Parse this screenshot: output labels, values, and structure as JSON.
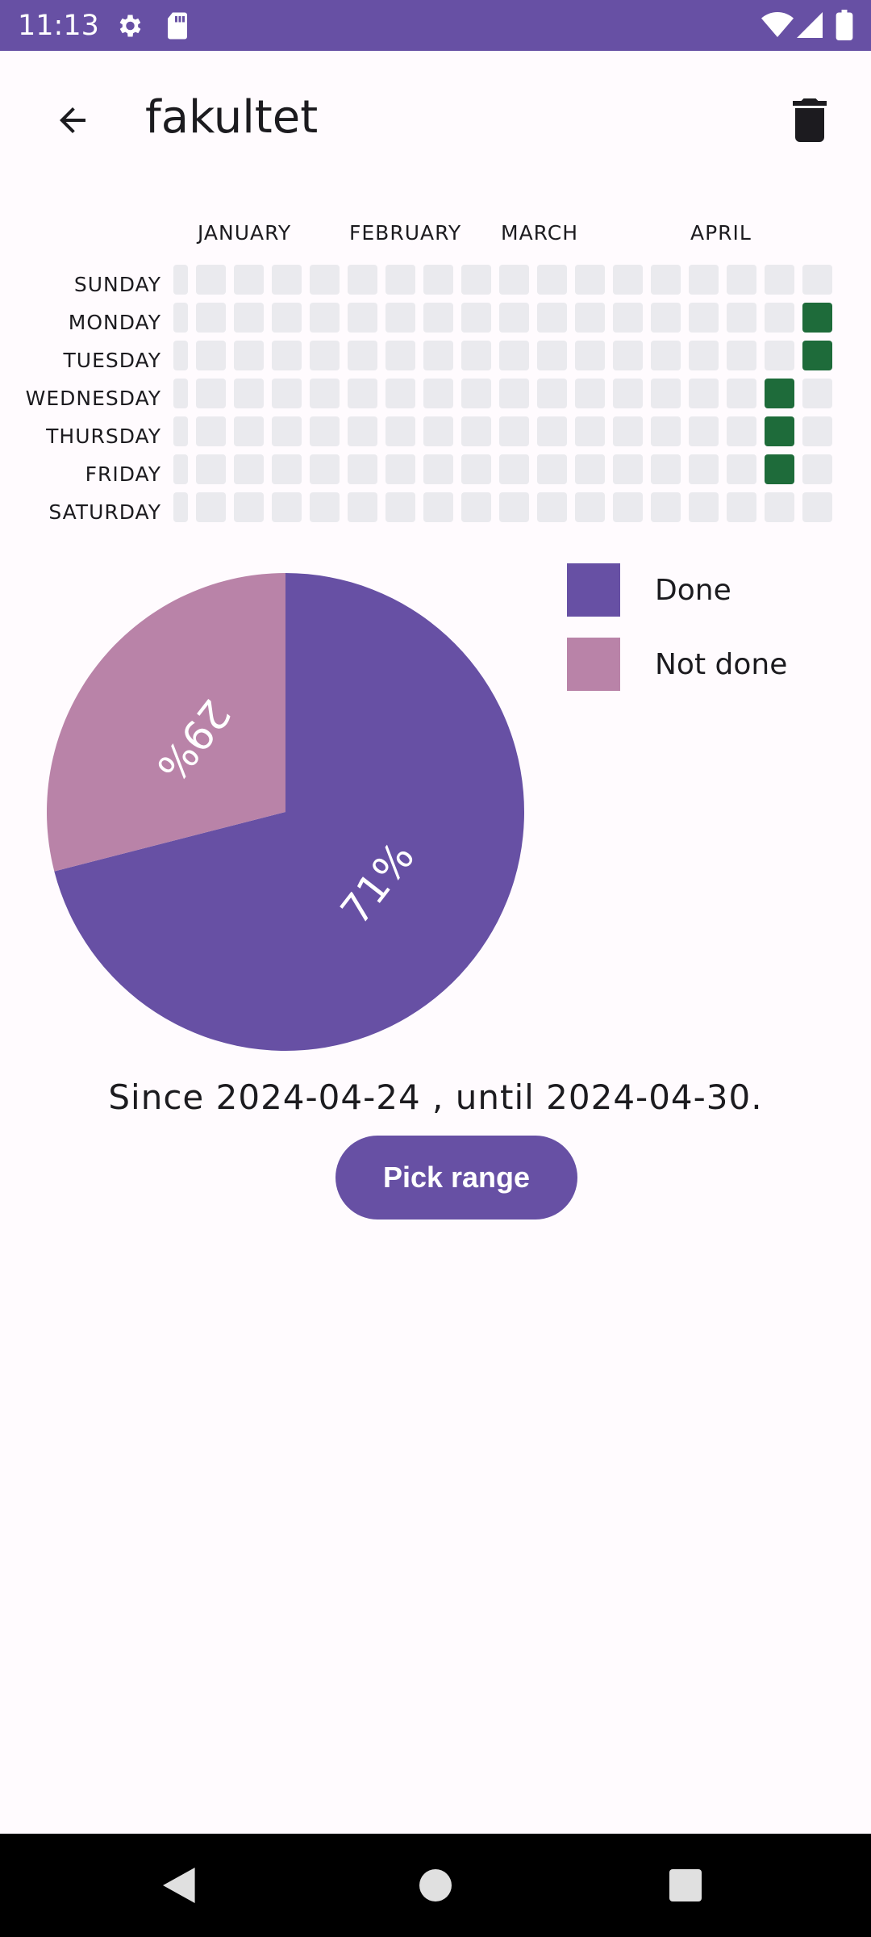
{
  "status_bar": {
    "time": "11:13",
    "icons": [
      "settings-icon",
      "sd-card-icon",
      "wifi-icon",
      "signal-icon",
      "battery-icon"
    ]
  },
  "app_bar": {
    "title": "fakultet",
    "back_icon": "arrow-left-icon",
    "delete_icon": "trash-icon"
  },
  "heatmap": {
    "months": [
      "JANUARY",
      "FEBRUARY",
      "MARCH",
      "APRIL"
    ],
    "days": [
      "SUNDAY",
      "MONDAY",
      "TUESDAY",
      "WEDNESDAY",
      "THURSDAY",
      "FRIDAY",
      "SATURDAY"
    ],
    "week_count": 18,
    "completed_days": [
      {
        "week": 17,
        "day": 1
      },
      {
        "week": 17,
        "day": 2
      },
      {
        "week": 16,
        "day": 3
      },
      {
        "week": 16,
        "day": 4
      },
      {
        "week": 16,
        "day": 5
      }
    ],
    "empty_color": "#eaeaee",
    "done_color": "#1e6b3a"
  },
  "chart_data": {
    "type": "pie",
    "slices": [
      {
        "label": "Done",
        "value": 71,
        "display": "71%",
        "color": "#6750a4"
      },
      {
        "label": "Not done",
        "value": 29,
        "display": "29%",
        "color": "#b983a8"
      }
    ]
  },
  "legend": [
    {
      "label": "Done",
      "color": "#6750a4"
    },
    {
      "label": "Not done",
      "color": "#b983a8"
    }
  ],
  "range_text": "Since 2024-04-24 , until 2024-04-30.",
  "pick_range_label": "Pick range",
  "nav_bar": {
    "icons": [
      "back-triangle-icon",
      "home-circle-icon",
      "recents-square-icon"
    ]
  }
}
